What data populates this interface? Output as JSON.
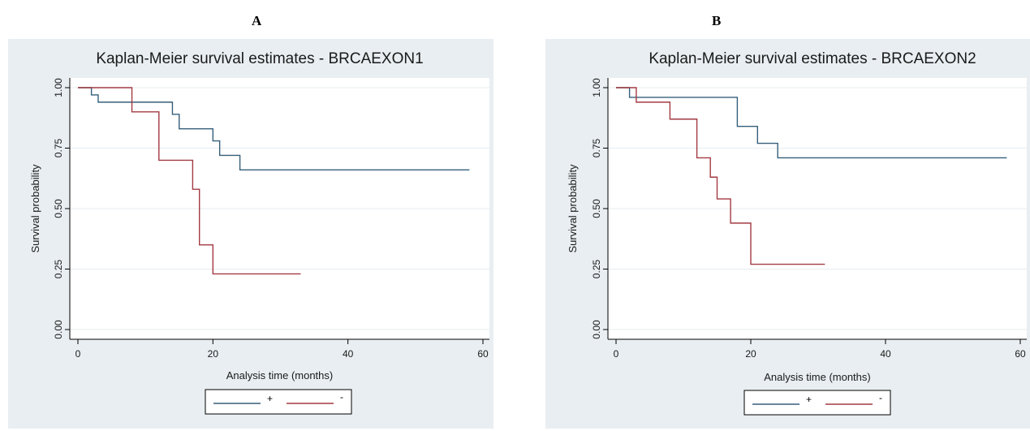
{
  "panels": [
    {
      "letter": "A"
    },
    {
      "letter": "B"
    }
  ],
  "colors": {
    "outer_bg": "#e8eef1",
    "plot_bg": "#ffffff",
    "grid": "#e6ecef",
    "plus": "#365f7a",
    "minus": "#a33a42"
  },
  "chart_data": [
    {
      "type": "line",
      "title": "Kaplan-Meier survival estimates - BRCAEXON1",
      "xlabel": "Analysis time (months)",
      "ylabel": "Survival probability",
      "xlim": [
        0,
        60
      ],
      "ylim": [
        0,
        1
      ],
      "xticks": [
        0,
        20,
        40,
        60
      ],
      "yticks": [
        0,
        0.25,
        0.5,
        0.75,
        1
      ],
      "ytick_labels": [
        "0.00",
        "0.25",
        "0.50",
        "0.75",
        "1.00"
      ],
      "grid": true,
      "legend": "bottom",
      "series": [
        {
          "name": "+",
          "color": "#365f7a",
          "step_points": [
            [
              0,
              1.0
            ],
            [
              2,
              0.97
            ],
            [
              3,
              0.94
            ],
            [
              14,
              0.89
            ],
            [
              15,
              0.83
            ],
            [
              20,
              0.78
            ],
            [
              21,
              0.72
            ],
            [
              24,
              0.66
            ],
            [
              58,
              0.66
            ]
          ]
        },
        {
          "name": "-",
          "color": "#a33a42",
          "step_points": [
            [
              0,
              1.0
            ],
            [
              8,
              0.9
            ],
            [
              12,
              0.7
            ],
            [
              17,
              0.58
            ],
            [
              18,
              0.35
            ],
            [
              20,
              0.23
            ],
            [
              33,
              0.23
            ]
          ]
        }
      ]
    },
    {
      "type": "line",
      "title": "Kaplan-Meier survival estimates - BRCAEXON2",
      "xlabel": "Analysis time (months)",
      "ylabel": "Survival probability",
      "xlim": [
        0,
        60
      ],
      "ylim": [
        0,
        1
      ],
      "xticks": [
        0,
        20,
        40,
        60
      ],
      "yticks": [
        0,
        0.25,
        0.5,
        0.75,
        1
      ],
      "ytick_labels": [
        "0.00",
        "0.25",
        "0.50",
        "0.75",
        "1.00"
      ],
      "grid": true,
      "legend": "bottom",
      "series": [
        {
          "name": "+",
          "color": "#365f7a",
          "step_points": [
            [
              0,
              1.0
            ],
            [
              2,
              0.96
            ],
            [
              18,
              0.84
            ],
            [
              21,
              0.77
            ],
            [
              24,
              0.71
            ],
            [
              58,
              0.71
            ]
          ]
        },
        {
          "name": "-",
          "color": "#a33a42",
          "step_points": [
            [
              0,
              1.0
            ],
            [
              3,
              0.94
            ],
            [
              8,
              0.87
            ],
            [
              12,
              0.71
            ],
            [
              14,
              0.63
            ],
            [
              15,
              0.54
            ],
            [
              17,
              0.44
            ],
            [
              20,
              0.27
            ],
            [
              31,
              0.27
            ]
          ]
        }
      ]
    }
  ]
}
